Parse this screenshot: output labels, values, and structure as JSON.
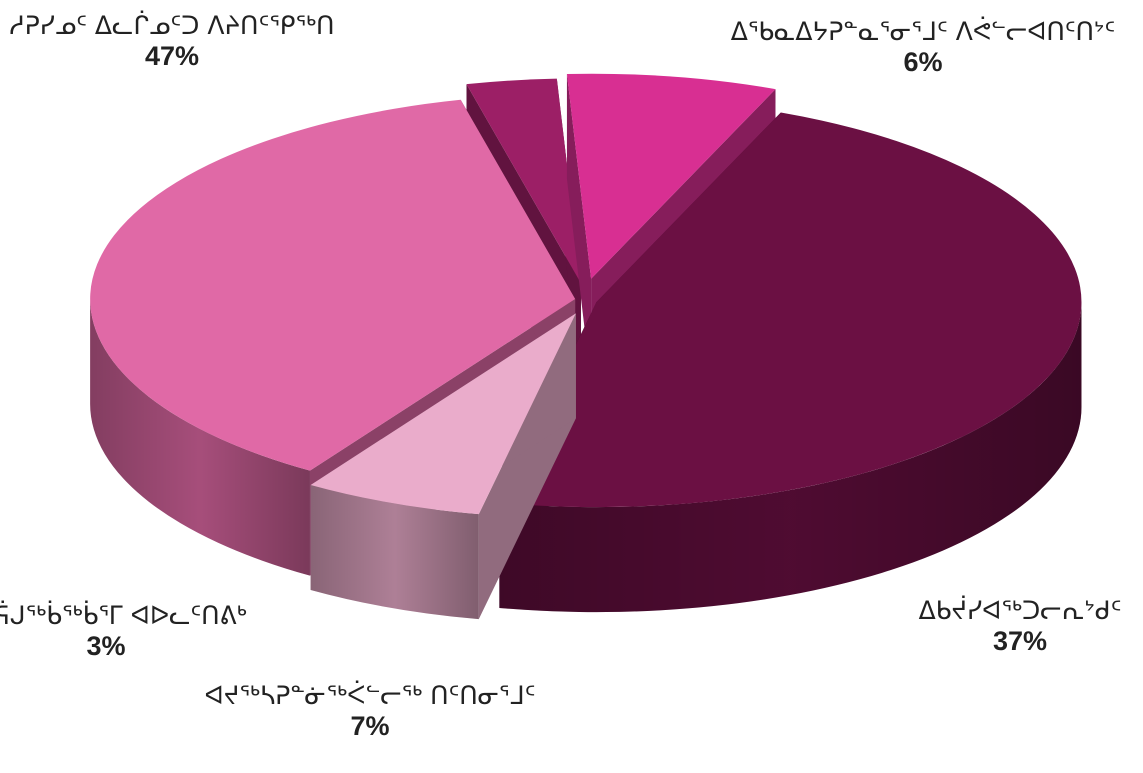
{
  "chart_data": {
    "type": "pie",
    "style": "3d-exploded",
    "legend": "none",
    "title": "",
    "slices": [
      {
        "name": "ᓱᕈᓯᓄᑦ ᐃᓚᒌᓄᑦᑐ ᐱᔨᑎᑦᕿᖅᑎ",
        "value": 47,
        "pct_label": "47%",
        "color": "#6b1043"
      },
      {
        "name": "ᐃᖃᓇᐃᔭᕈᓐᓇᕐᓂᕐᒧᑦ ᐱᕚᓪᓕᐊᑎᑦᑎᔾᑦ",
        "value": 6,
        "pct_label": "6%",
        "color": "#eaaccb"
      },
      {
        "name": "ᐃᑲᔫᓯᐊᖅᑐᓕᕆᔾᑯᑦ",
        "value": 37,
        "pct_label": "37%",
        "color": "#e069a6"
      },
      {
        "name": "ᐊᕐᕌᒍᖅᑳᖅᑳᕐᒥ ᐊᐅᓚᑦᑎᕕᒃ",
        "value": 3,
        "pct_label": "3%",
        "color": "#9c1f66"
      },
      {
        "name": "ᐊᔪᖅᓴᕈᓐᓃᖅᐹᓪᓕᖅ ᑎᑦᑎᓂᕐᒧᑦ",
        "value": 7,
        "pct_label": "7%",
        "color": "#d82f92"
      }
    ]
  }
}
